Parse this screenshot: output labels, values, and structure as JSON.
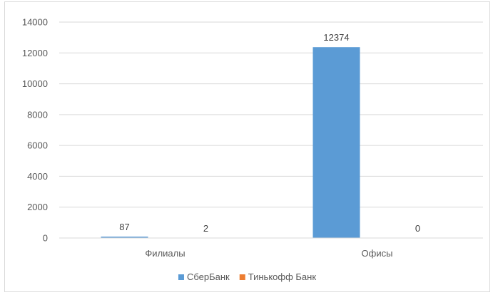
{
  "chart_data": {
    "type": "bar",
    "categories": [
      "Филиалы",
      "Офисы"
    ],
    "series": [
      {
        "name": "СберБанк",
        "values": [
          87,
          12374
        ],
        "color": "#5b9bd5"
      },
      {
        "name": "Тинькофф Банк",
        "values": [
          2,
          0
        ],
        "color": "#ed7d31"
      }
    ],
    "y_ticks": [
      "0",
      "2000",
      "4000",
      "6000",
      "8000",
      "10000",
      "12000",
      "14000"
    ],
    "ylim": [
      0,
      14000
    ],
    "grid": true,
    "legend_position": "bottom",
    "data_labels": true
  }
}
